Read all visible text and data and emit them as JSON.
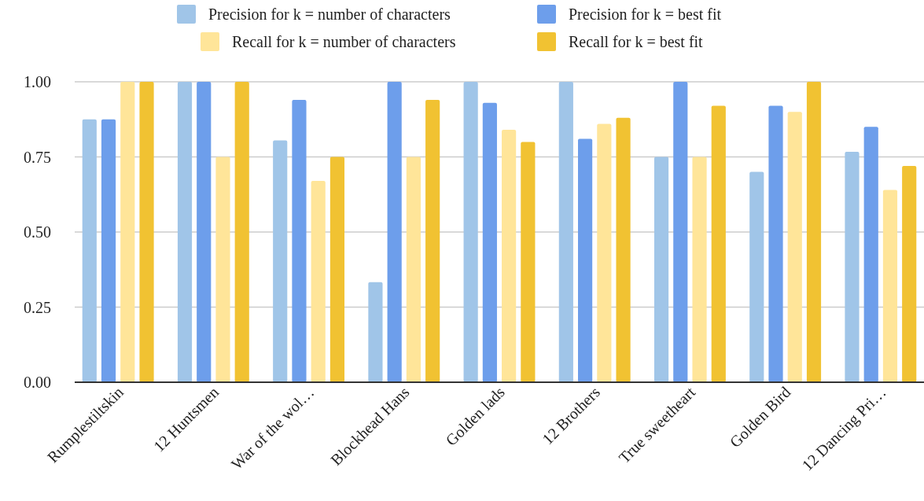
{
  "chart_data": {
    "type": "bar",
    "categories": [
      "Rumplestiltskin",
      "12 Huntsmen",
      "War of the wol…",
      "Blockhead Hans",
      "Golden lads",
      "12 Brothers",
      "True sweetheart",
      "Golden Bird",
      "12 Dancing Pri…"
    ],
    "series": [
      {
        "name": "Precision for k = number of characters",
        "color": "#a0c5e8",
        "values": [
          0.875,
          1,
          0.805,
          0.333,
          1,
          1,
          0.75,
          0.7,
          0.767
        ]
      },
      {
        "name": "Precision for k = best fit",
        "color": "#6d9eeb",
        "values": [
          0.875,
          1,
          0.94,
          1,
          0.93,
          0.81,
          1,
          0.92,
          0.85
        ]
      },
      {
        "name": "Recall for k = number of characters",
        "color": "#ffe599",
        "values": [
          1,
          0.75,
          0.67,
          0.75,
          0.84,
          0.86,
          0.75,
          0.9,
          0.64
        ]
      },
      {
        "name": "Recall for k = best fit",
        "color": "#f1c232",
        "values": [
          1,
          1,
          0.75,
          0.94,
          0.8,
          0.88,
          0.92,
          1,
          0.72
        ]
      }
    ],
    "ylim": [
      0,
      1
    ],
    "yticks": [
      {
        "value": 0,
        "label": "0.00"
      },
      {
        "value": 0.25,
        "label": "0.25"
      },
      {
        "value": 0.5,
        "label": "0.50"
      },
      {
        "value": 0.75,
        "label": "0.75"
      },
      {
        "value": 1,
        "label": "1.00"
      }
    ],
    "grid": "y",
    "legend": "top"
  }
}
